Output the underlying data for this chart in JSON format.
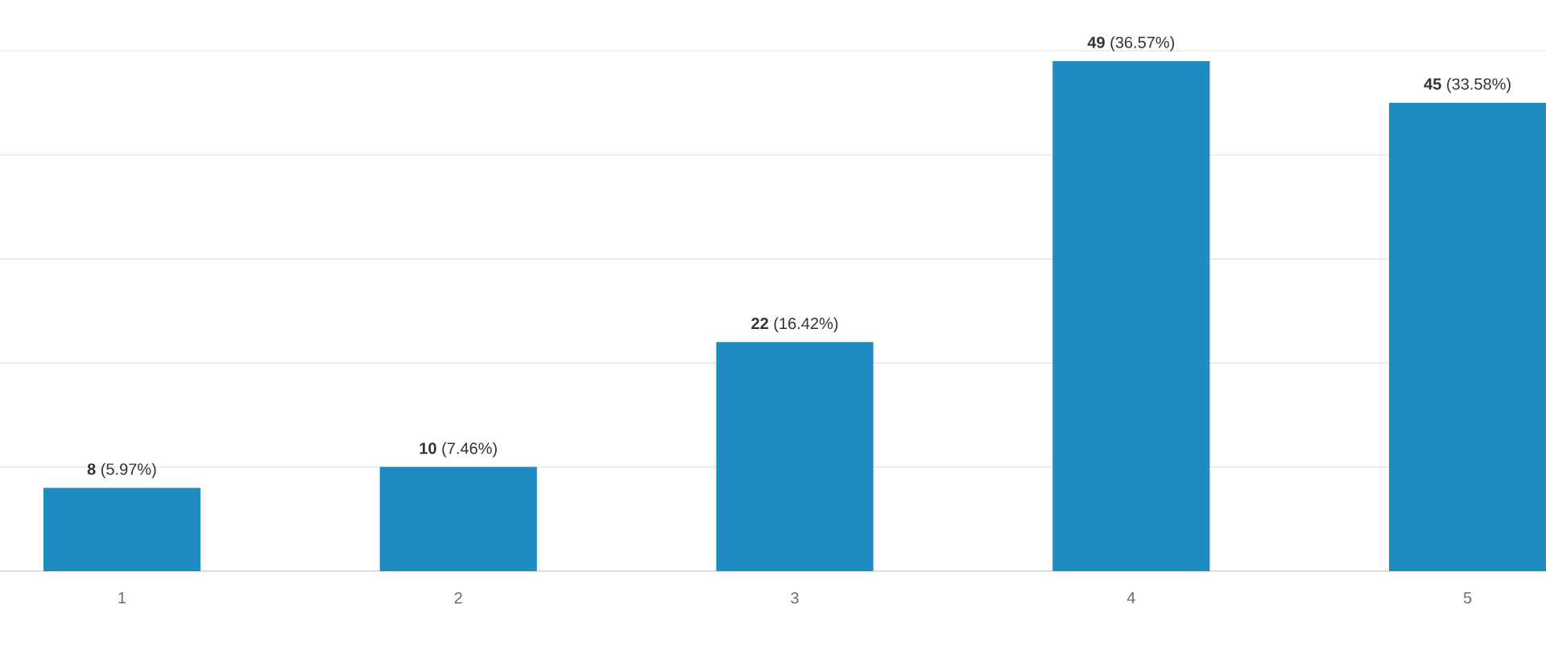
{
  "chart_data": {
    "type": "bar",
    "categories": [
      "1",
      "2",
      "3",
      "4",
      "5"
    ],
    "values": [
      8,
      10,
      22,
      49,
      45
    ],
    "color": "#1e8bc3",
    "value_labels": [
      "**8** (5.97%)",
      "**10** (7.46%)",
      "**22** (16.42%)",
      "**49** (36.57%)",
      "**45** (33.58%)"
    ],
    "ylim": [
      0,
      50
    ],
    "yticks": [
      {
        "value": 0,
        "label": null
      },
      {
        "value": 10,
        "label": null
      },
      {
        "value": 20,
        "label": null
      },
      {
        "value": 30,
        "label": null
      },
      {
        "value": 40,
        "label": null
      },
      {
        "value": 50,
        "label": null
      }
    ],
    "grid": "y",
    "tick_labels": "x"
  }
}
